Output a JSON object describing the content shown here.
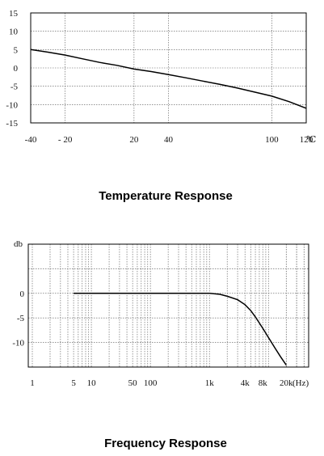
{
  "chart_data": [
    {
      "type": "line",
      "title": "Temperature Response",
      "xlabel": "",
      "ylabel": "",
      "x_unit": "℃",
      "x_ticks": [
        {
          "value": -40,
          "label": "-40"
        },
        {
          "value": -20,
          "label": "- 20"
        },
        {
          "value": 20,
          "label": "20"
        },
        {
          "value": 40,
          "label": "40"
        },
        {
          "value": 100,
          "label": "100"
        },
        {
          "value": 120,
          "label": "120"
        }
      ],
      "y_ticks": [
        15,
        10,
        5,
        0,
        -5,
        -10,
        -15
      ],
      "y_tick_labels": [
        "15",
        "10",
        "5",
        "0",
        "-5",
        "-10",
        "-15"
      ],
      "grid_x_values": [
        -20,
        20,
        40,
        100
      ],
      "ylim": [
        -15,
        15
      ],
      "grid": true,
      "series": [
        {
          "x": [
            -40,
            -30,
            -20,
            -10,
            0,
            10,
            20,
            30,
            40,
            50,
            60,
            70,
            80,
            90,
            100,
            110,
            120
          ],
          "y": [
            5,
            4.3,
            3.5,
            2.5,
            1.5,
            0.7,
            -0.3,
            -1.0,
            -1.8,
            -2.7,
            -3.6,
            -4.5,
            -5.5,
            -6.6,
            -7.7,
            -9.2,
            -11
          ]
        }
      ]
    },
    {
      "type": "line",
      "title": "Frequency Response",
      "xlabel": "",
      "ylabel": "db",
      "x_scale": "log",
      "x_unit": "(Hz)",
      "x_ticks": [
        {
          "value": 1,
          "label": "1"
        },
        {
          "value": 5,
          "label": "5"
        },
        {
          "value": 10,
          "label": "10"
        },
        {
          "value": 50,
          "label": "50"
        },
        {
          "value": 100,
          "label": "100"
        },
        {
          "value": 1000,
          "label": "1k"
        },
        {
          "value": 4000,
          "label": "4k"
        },
        {
          "value": 8000,
          "label": "8k"
        },
        {
          "value": 20000,
          "label": "20k"
        }
      ],
      "y_ticks": [
        0,
        -5,
        -10
      ],
      "y_tick_labels": [
        "0",
        "-5",
        "-10"
      ],
      "ylim": [
        -15,
        10
      ],
      "grid": true,
      "series": [
        {
          "x": [
            5,
            10,
            50,
            100,
            500,
            1000,
            1500,
            2000,
            3000,
            4000,
            5000,
            6000,
            8000,
            10000,
            13000,
            16000,
            20000
          ],
          "y": [
            0,
            0,
            0,
            0,
            0,
            0,
            -0.2,
            -0.6,
            -1.3,
            -2.3,
            -3.5,
            -4.8,
            -7.1,
            -9.0,
            -11.2,
            -12.9,
            -14.6
          ]
        }
      ]
    }
  ]
}
